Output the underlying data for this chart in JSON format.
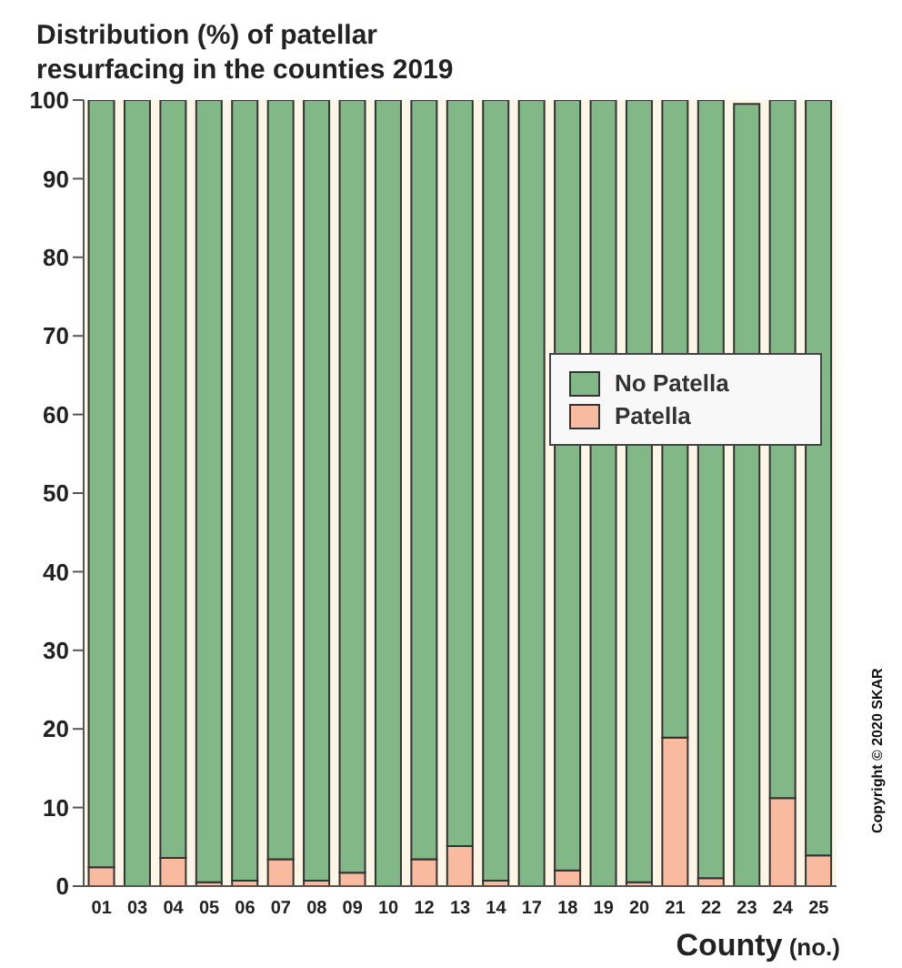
{
  "chart_data": {
    "type": "bar",
    "title": "Distribution (%) of patellar resurfacing in the counties 2019",
    "xlabel": "County (no.)",
    "annotations": [
      "Copyright © 2020 SKAR"
    ],
    "categories": [
      "01",
      "03",
      "04",
      "05",
      "06",
      "07",
      "08",
      "09",
      "10",
      "12",
      "13",
      "14",
      "17",
      "18",
      "19",
      "20",
      "21",
      "22",
      "23",
      "24",
      "25"
    ],
    "stacked": true,
    "series": [
      {
        "name": "Patella",
        "color": "#f9bba0",
        "values": [
          2.4,
          0,
          3.6,
          0.5,
          0.7,
          3.4,
          0.7,
          1.7,
          0,
          3.4,
          5.1,
          0.7,
          0,
          2.0,
          0,
          0.5,
          18.9,
          1.0,
          0,
          11.2,
          3.9
        ]
      },
      {
        "name": "No Patella",
        "color": "#82b887",
        "values": [
          97.6,
          100,
          96.4,
          99.5,
          99.3,
          96.6,
          99.3,
          98.3,
          100,
          96.6,
          94.9,
          99.3,
          100,
          98.0,
          100,
          99.5,
          81.1,
          99.0,
          99.5,
          88.8,
          96.1
        ]
      }
    ],
    "ylim": [
      0,
      100
    ],
    "yticks": [
      0,
      10,
      20,
      30,
      40,
      50,
      60,
      70,
      80,
      90,
      100
    ],
    "grid": false,
    "legend": "right"
  }
}
